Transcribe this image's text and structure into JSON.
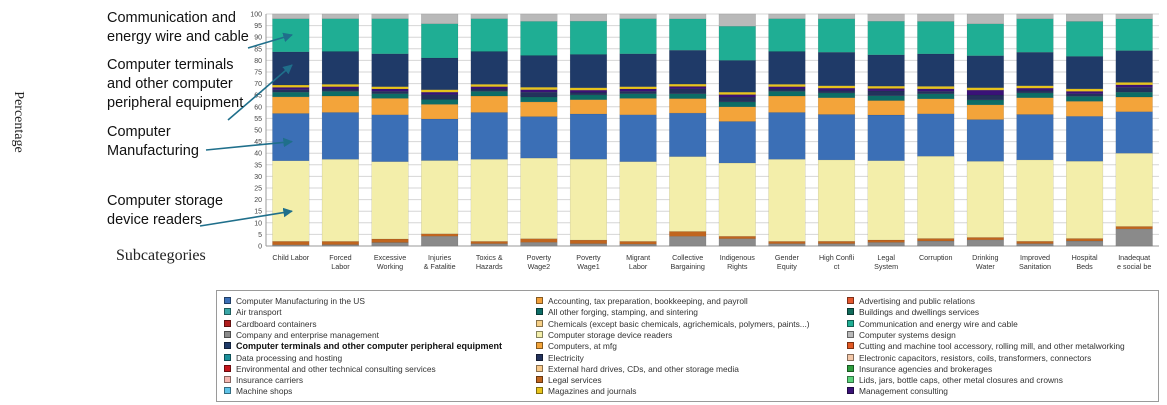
{
  "y_axis_label": "Percentage",
  "x_axis_label": "Subcategories",
  "annotations": [
    {
      "id": "comm",
      "lines": [
        "Communication and",
        "energy wire and cable"
      ],
      "target_pct": 91
    },
    {
      "id": "terminals",
      "lines": [
        "Computer terminals",
        "and other computer",
        "peripheral equipment"
      ],
      "target_pct": 78
    },
    {
      "id": "manufacturing",
      "lines": [
        "Computer",
        "Manufacturing"
      ],
      "target_pct": 45
    },
    {
      "id": "storage",
      "lines": [
        "Computer storage",
        "device readers"
      ],
      "target_pct": 15
    }
  ],
  "chart_data": {
    "type": "bar",
    "stacked": true,
    "ylim": [
      0,
      100
    ],
    "yticks": [
      0,
      5,
      10,
      15,
      20,
      25,
      30,
      35,
      40,
      45,
      50,
      55,
      60,
      65,
      70,
      75,
      80,
      85,
      90,
      95,
      100
    ],
    "grid": true,
    "categories": [
      [
        "Child Labor"
      ],
      [
        "Forced",
        "Labor"
      ],
      [
        "Excessive",
        "Working"
      ],
      [
        "Injuries",
        "& Fatalitie"
      ],
      [
        "Toxics &",
        "Hazards"
      ],
      [
        "Poverty",
        "Wage2"
      ],
      [
        "Poverty",
        "Wage1"
      ],
      [
        "Migrant",
        "Labor"
      ],
      [
        "Collective",
        "Bargaining"
      ],
      [
        "Indigenous",
        "Rights"
      ],
      [
        "Gender",
        "Equity"
      ],
      [
        "High Confli",
        "ct"
      ],
      [
        "Legal",
        "System"
      ],
      [
        "Corruption"
      ],
      [
        "Drinking",
        "Water"
      ],
      [
        "Improved",
        "Sanitation"
      ],
      [
        "Hospital",
        "Beds"
      ],
      [
        "Inadequat",
        "e social be"
      ]
    ],
    "series": [
      {
        "name": "Computer storage device readers",
        "color": "#f3eeaa",
        "values": [
          34,
          35,
          33,
          30,
          35,
          33,
          34,
          34,
          31,
          30,
          35,
          34,
          33,
          33,
          31,
          34,
          31,
          30
        ]
      },
      {
        "name": "Computer Manufacturing in the US",
        "color": "#3b6fb6",
        "values": [
          20,
          20,
          20,
          17,
          20,
          17,
          19,
          20,
          18,
          17,
          20,
          19,
          19,
          17,
          17,
          19,
          18,
          17
        ]
      },
      {
        "name": "Computers, at mfg",
        "color": "#f3a43a",
        "values": [
          7,
          7,
          7,
          6,
          7,
          6,
          6,
          7,
          6,
          6,
          7,
          7,
          6,
          6,
          6,
          7,
          6,
          6
        ]
      },
      {
        "name": "All other forging, stamping, and sintering",
        "color": "#0d6d66",
        "values": [
          2,
          2,
          2,
          2,
          2,
          2,
          2,
          2,
          2,
          2,
          2,
          2,
          2,
          2,
          2,
          2,
          2,
          2
        ]
      },
      {
        "name": "Electricity",
        "color": "#23325c",
        "values": [
          1,
          1,
          1,
          2,
          1,
          2,
          1,
          1,
          2,
          2,
          1,
          1,
          2,
          1,
          2,
          1,
          1,
          2
        ]
      },
      {
        "name": "Management consulting",
        "color": "#3a1278",
        "values": [
          1,
          1,
          1,
          1,
          1,
          1,
          1,
          1,
          1,
          1,
          1,
          1,
          1,
          1,
          2,
          1,
          1,
          1
        ]
      },
      {
        "name": "Magazines and journals",
        "color": "#e8c41c",
        "values": [
          1,
          1,
          1,
          1,
          1,
          1,
          1,
          1,
          1,
          1,
          1,
          1,
          1,
          1,
          1,
          1,
          1,
          1
        ]
      },
      {
        "name": "Computer terminals and other computer peripheral equipment",
        "color": "#1f3a68",
        "values": [
          14,
          14,
          14,
          13,
          14,
          13,
          14,
          14,
          14,
          13,
          14,
          14,
          13,
          13,
          13,
          14,
          13,
          13
        ]
      },
      {
        "name": "Communication and energy wire and cable",
        "color": "#1fae94",
        "values": [
          14,
          14,
          15,
          14,
          14,
          14,
          14,
          15,
          13,
          14,
          14,
          14,
          14,
          13,
          13,
          14,
          14,
          13
        ]
      },
      {
        "name": "Computer systems design",
        "color": "#b9b9b9",
        "values": [
          2,
          2,
          2,
          4,
          2,
          3,
          3,
          2,
          2,
          5,
          2,
          2,
          3,
          3,
          4,
          2,
          3,
          2
        ]
      }
    ],
    "bottom_series": [
      {
        "name": "Company and enterprise management",
        "color": "#8a8a8a",
        "values": [
          0.5,
          0.6,
          1.5,
          4,
          1,
          1.5,
          1,
          0.8,
          4,
          3,
          1,
          1,
          1.5,
          2,
          2.5,
          1,
          2,
          7
        ]
      },
      {
        "name": "Legal services",
        "color": "#c0651e",
        "values": [
          1.5,
          1.4,
          1.5,
          1,
          1,
          1.5,
          1.5,
          1.2,
          2,
          1,
          1,
          1,
          1,
          1,
          1,
          1,
          1,
          1
        ]
      }
    ],
    "legend": {
      "placement": "bottom",
      "columns": [
        [
          {
            "label": "Computer Manufacturing in the US",
            "color": "#3b6fb6"
          },
          {
            "label": "Air transport",
            "color": "#3aa6a6"
          },
          {
            "label": "Cardboard containers",
            "color": "#b01d1d"
          },
          {
            "label": "Company and enterprise management",
            "color": "#8a8a8a"
          },
          {
            "label": "Computer terminals and other computer peripheral equipment",
            "color": "#1f3a68",
            "bold": true
          },
          {
            "label": "Data processing and hosting",
            "color": "#1a8f9a"
          },
          {
            "label": "Environmental and other technical consulting services",
            "color": "#c4161c"
          },
          {
            "label": "Insurance carriers",
            "color": "#f4b6b0"
          },
          {
            "label": "Machine shops",
            "color": "#5fc3e8"
          }
        ],
        [
          {
            "label": "Accounting, tax preparation, bookkeeping, and payroll",
            "color": "#f2a13b"
          },
          {
            "label": "All other forging, stamping, and sintering",
            "color": "#0d6d66"
          },
          {
            "label": "Chemicals (except basic chemicals, agrichemicals, polymers, paints...)",
            "color": "#f6cf86"
          },
          {
            "label": "Computer storage device readers",
            "color": "#f3eeaa"
          },
          {
            "label": "Computers, at mfg",
            "color": "#f3a43a"
          },
          {
            "label": "Electricity",
            "color": "#23325c"
          },
          {
            "label": "External hard drives, CDs, and other storage media",
            "color": "#f8c98a"
          },
          {
            "label": "Legal services",
            "color": "#c0651e"
          },
          {
            "label": "Magazines and journals",
            "color": "#e8c41c"
          }
        ],
        [
          {
            "label": "Advertising and public relations",
            "color": "#e4572e"
          },
          {
            "label": "Buildings and dwellings services",
            "color": "#116b5b"
          },
          {
            "label": "Communication and energy wire and cable",
            "color": "#1fae94"
          },
          {
            "label": "Computer systems design",
            "color": "#b9b9b9"
          },
          {
            "label": "Cutting and machine tool accessory, rolling mill, and other metalworking",
            "color": "#e25822"
          },
          {
            "label": "Electronic capacitors, resistors, coils, transformers, connectors",
            "color": "#f3c7a8"
          },
          {
            "label": "Insurance agencies and brokerages",
            "color": "#2e9e3e"
          },
          {
            "label": "Lids, jars, bottle caps, other metal closures and crowns",
            "color": "#5ad27a"
          },
          {
            "label": "Management consulting",
            "color": "#3a1278"
          }
        ]
      ]
    }
  }
}
